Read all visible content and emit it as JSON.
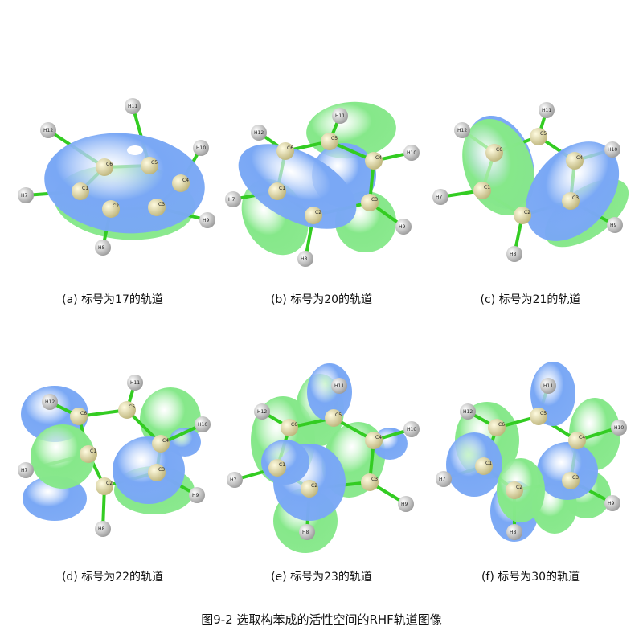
{
  "panels": [
    {
      "caption": "(a) 标号为17的轨道",
      "atom_labels": {
        "C1": "C1",
        "C2": "C2",
        "C3": "C3",
        "C4": "C4",
        "C5": "C5",
        "C6": "C6",
        "H1": "H7",
        "H2": "H8",
        "H3": "H9",
        "H4": "H10",
        "H5": "H11",
        "H6": "H12"
      }
    },
    {
      "caption": "(b) 标号为20的轨道",
      "atom_labels": {
        "C1": "C1",
        "C2": "C2",
        "C3": "C3",
        "C4": "C4",
        "C5": "C5",
        "C6": "C6",
        "H1": "H7",
        "H2": "H8",
        "H3": "H9",
        "H4": "H10",
        "H5": "H11",
        "H6": "H12"
      }
    },
    {
      "caption": "(c) 标号为21的轨道",
      "atom_labels": {
        "C1": "C1",
        "C2": "C2",
        "C3": "C3",
        "C4": "C4",
        "C5": "C5",
        "C6": "C6",
        "H1": "H7",
        "H2": "H8",
        "H3": "H9",
        "H4": "H10",
        "H5": "H11",
        "H6": "H12"
      }
    },
    {
      "caption": "(d) 标号为22的轨道",
      "atom_labels": {
        "C1": "C1",
        "C2": "C2",
        "C3": "C3",
        "C4": "C4",
        "C5": "C5",
        "C6": "C6",
        "H1": "H7",
        "H2": "H8",
        "H3": "H9",
        "H4": "H10",
        "H5": "H11",
        "H6": "H12"
      }
    },
    {
      "caption": "(e) 标号为23的轨道",
      "atom_labels": {
        "C1": "C1",
        "C2": "C2",
        "C3": "C3",
        "C4": "C4",
        "C5": "C5",
        "C6": "C6",
        "H1": "H7",
        "H2": "H8",
        "H3": "H9",
        "H4": "H10",
        "H5": "H11",
        "H6": "H12"
      }
    },
    {
      "caption": "(f) 标号为30的轨道",
      "atom_labels": {
        "C1": "C1",
        "C2": "C2",
        "C3": "C3",
        "C4": "C4",
        "C5": "C5",
        "C6": "C6",
        "H1": "H7",
        "H2": "H8",
        "H3": "H9",
        "H4": "H10",
        "H5": "H11",
        "H6": "H12"
      }
    }
  ],
  "figure_caption": "图9-2 选取构苯成的活性空间的RHF轨道图像",
  "colors": {
    "lobe_blue": "#7aa8f5",
    "lobe_green": "#86e88a",
    "carbon": "#bdb47a",
    "hydrogen": "#d8d8d8",
    "bond": "#33cc22"
  }
}
